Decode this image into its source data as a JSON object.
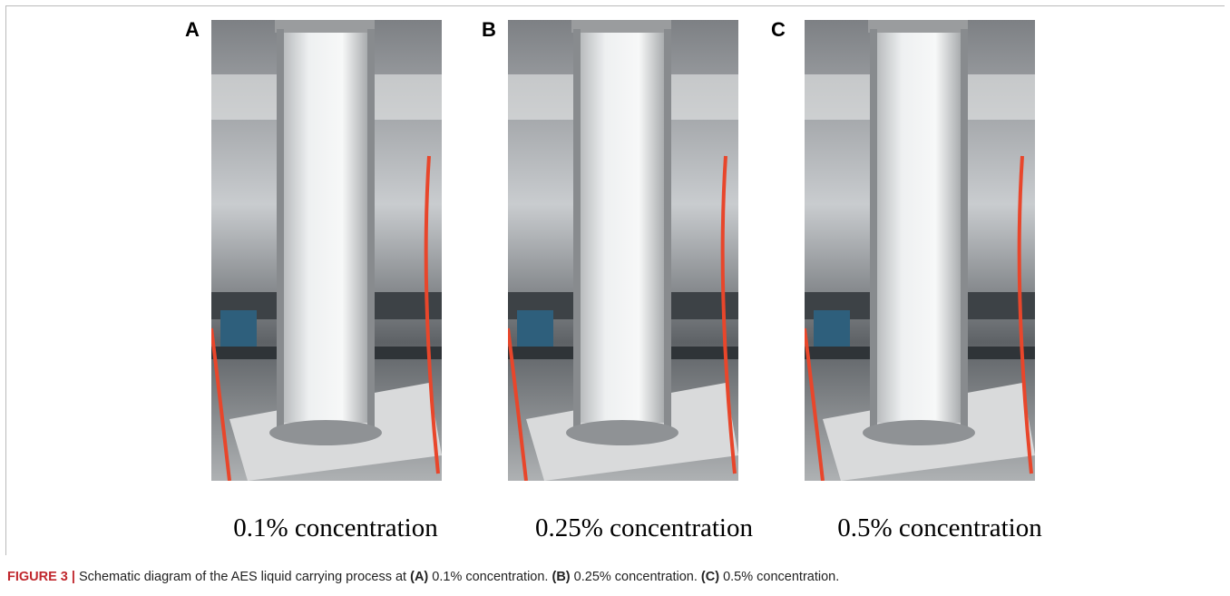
{
  "figure": {
    "panels": [
      {
        "label": "A",
        "caption": "0.1% concentration"
      },
      {
        "label": "B",
        "caption": "0.25% concentration"
      },
      {
        "label": "C",
        "caption": "0.5% concentration"
      }
    ],
    "caption": {
      "number": "FIGURE 3 |",
      "text": "Schematic diagram of the AES liquid carrying process at",
      "parts": [
        {
          "label": "(A)",
          "text": "0.1% concentration."
        },
        {
          "label": "(B)",
          "text": "0.25% concentration."
        },
        {
          "label": "(C)",
          "text": "0.5% concentration."
        }
      ]
    }
  }
}
